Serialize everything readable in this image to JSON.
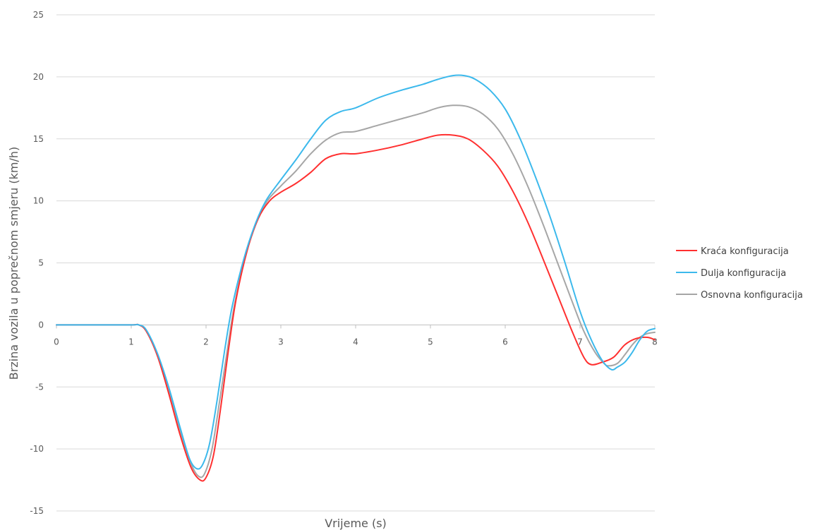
{
  "chart_data": {
    "type": "line",
    "title": "",
    "xlabel": "Vrijeme (s)",
    "ylabel": "Brzina vozila u poprečnom smjeru (km/h)",
    "xlim": [
      0,
      8
    ],
    "ylim": [
      -15,
      25
    ],
    "xticks": [
      0,
      1,
      2,
      3,
      4,
      5,
      6,
      7,
      8
    ],
    "yticks": [
      -15,
      -10,
      -5,
      0,
      5,
      10,
      15,
      20,
      25
    ],
    "grid": "horizontal",
    "legend_position": "right",
    "series": [
      {
        "name": "Kraća konfiguracija",
        "color": "#ff3030",
        "points": [
          [
            0,
            0
          ],
          [
            0.5,
            0
          ],
          [
            1.0,
            0
          ],
          [
            1.1,
            0
          ],
          [
            1.2,
            -0.5
          ],
          [
            1.35,
            -2.5
          ],
          [
            1.5,
            -5.5
          ],
          [
            1.65,
            -8.8
          ],
          [
            1.8,
            -11.5
          ],
          [
            1.92,
            -12.5
          ],
          [
            2.0,
            -12.3
          ],
          [
            2.1,
            -10.5
          ],
          [
            2.2,
            -6.5
          ],
          [
            2.3,
            -2.0
          ],
          [
            2.4,
            2.0
          ],
          [
            2.55,
            6.0
          ],
          [
            2.7,
            8.6
          ],
          [
            2.85,
            10.0
          ],
          [
            3.0,
            10.7
          ],
          [
            3.2,
            11.4
          ],
          [
            3.4,
            12.3
          ],
          [
            3.6,
            13.4
          ],
          [
            3.8,
            13.8
          ],
          [
            4.0,
            13.8
          ],
          [
            4.3,
            14.1
          ],
          [
            4.6,
            14.5
          ],
          [
            4.9,
            15.0
          ],
          [
            5.1,
            15.3
          ],
          [
            5.3,
            15.3
          ],
          [
            5.5,
            15.0
          ],
          [
            5.7,
            14.1
          ],
          [
            5.9,
            12.8
          ],
          [
            6.1,
            10.8
          ],
          [
            6.3,
            8.3
          ],
          [
            6.5,
            5.4
          ],
          [
            6.7,
            2.4
          ],
          [
            6.9,
            -0.6
          ],
          [
            7.05,
            -2.6
          ],
          [
            7.15,
            -3.2
          ],
          [
            7.3,
            -3.0
          ],
          [
            7.45,
            -2.6
          ],
          [
            7.6,
            -1.6
          ],
          [
            7.75,
            -1.1
          ],
          [
            7.9,
            -1.0
          ],
          [
            8.0,
            -1.2
          ]
        ]
      },
      {
        "name": "Dulja konfiguracija",
        "color": "#3cb9ec",
        "points": [
          [
            0,
            0
          ],
          [
            0.5,
            0
          ],
          [
            1.0,
            0
          ],
          [
            1.1,
            0
          ],
          [
            1.2,
            -0.4
          ],
          [
            1.35,
            -2.3
          ],
          [
            1.5,
            -5.0
          ],
          [
            1.65,
            -8.2
          ],
          [
            1.78,
            -10.8
          ],
          [
            1.88,
            -11.6
          ],
          [
            1.96,
            -11.2
          ],
          [
            2.05,
            -9.5
          ],
          [
            2.15,
            -6.0
          ],
          [
            2.25,
            -2.0
          ],
          [
            2.35,
            1.5
          ],
          [
            2.5,
            5.2
          ],
          [
            2.65,
            8.0
          ],
          [
            2.8,
            10.0
          ],
          [
            3.0,
            11.7
          ],
          [
            3.2,
            13.3
          ],
          [
            3.4,
            15.0
          ],
          [
            3.6,
            16.5
          ],
          [
            3.8,
            17.2
          ],
          [
            4.0,
            17.5
          ],
          [
            4.3,
            18.3
          ],
          [
            4.6,
            18.9
          ],
          [
            4.9,
            19.4
          ],
          [
            5.1,
            19.8
          ],
          [
            5.3,
            20.1
          ],
          [
            5.45,
            20.1
          ],
          [
            5.6,
            19.8
          ],
          [
            5.8,
            18.9
          ],
          [
            6.0,
            17.4
          ],
          [
            6.2,
            15.0
          ],
          [
            6.4,
            12.0
          ],
          [
            6.6,
            8.7
          ],
          [
            6.8,
            5.0
          ],
          [
            7.0,
            1.1
          ],
          [
            7.15,
            -1.2
          ],
          [
            7.3,
            -2.9
          ],
          [
            7.42,
            -3.6
          ],
          [
            7.5,
            -3.4
          ],
          [
            7.6,
            -3.0
          ],
          [
            7.7,
            -2.2
          ],
          [
            7.8,
            -1.2
          ],
          [
            7.9,
            -0.5
          ],
          [
            8.0,
            -0.3
          ]
        ]
      },
      {
        "name": "Osnovna konfiguracija",
        "color": "#a6a6a6",
        "points": [
          [
            0,
            0
          ],
          [
            0.5,
            0
          ],
          [
            1.0,
            0
          ],
          [
            1.1,
            0
          ],
          [
            1.2,
            -0.5
          ],
          [
            1.35,
            -2.4
          ],
          [
            1.5,
            -5.2
          ],
          [
            1.65,
            -8.5
          ],
          [
            1.8,
            -11.2
          ],
          [
            1.9,
            -12.2
          ],
          [
            1.98,
            -12.0
          ],
          [
            2.08,
            -10.0
          ],
          [
            2.18,
            -6.2
          ],
          [
            2.28,
            -2.2
          ],
          [
            2.38,
            1.6
          ],
          [
            2.52,
            5.4
          ],
          [
            2.67,
            8.2
          ],
          [
            2.82,
            10.0
          ],
          [
            3.0,
            11.2
          ],
          [
            3.2,
            12.4
          ],
          [
            3.4,
            13.8
          ],
          [
            3.6,
            14.9
          ],
          [
            3.8,
            15.5
          ],
          [
            4.0,
            15.6
          ],
          [
            4.3,
            16.1
          ],
          [
            4.6,
            16.6
          ],
          [
            4.9,
            17.1
          ],
          [
            5.1,
            17.5
          ],
          [
            5.3,
            17.7
          ],
          [
            5.5,
            17.6
          ],
          [
            5.7,
            17.0
          ],
          [
            5.9,
            15.8
          ],
          [
            6.1,
            13.8
          ],
          [
            6.3,
            11.2
          ],
          [
            6.5,
            8.2
          ],
          [
            6.7,
            5.0
          ],
          [
            6.9,
            1.8
          ],
          [
            7.05,
            -0.5
          ],
          [
            7.2,
            -2.2
          ],
          [
            7.32,
            -3.1
          ],
          [
            7.38,
            -3.3
          ],
          [
            7.5,
            -3.1
          ],
          [
            7.6,
            -2.4
          ],
          [
            7.7,
            -1.6
          ],
          [
            7.8,
            -1.0
          ],
          [
            7.9,
            -0.7
          ],
          [
            8.0,
            -0.6
          ]
        ]
      }
    ]
  }
}
